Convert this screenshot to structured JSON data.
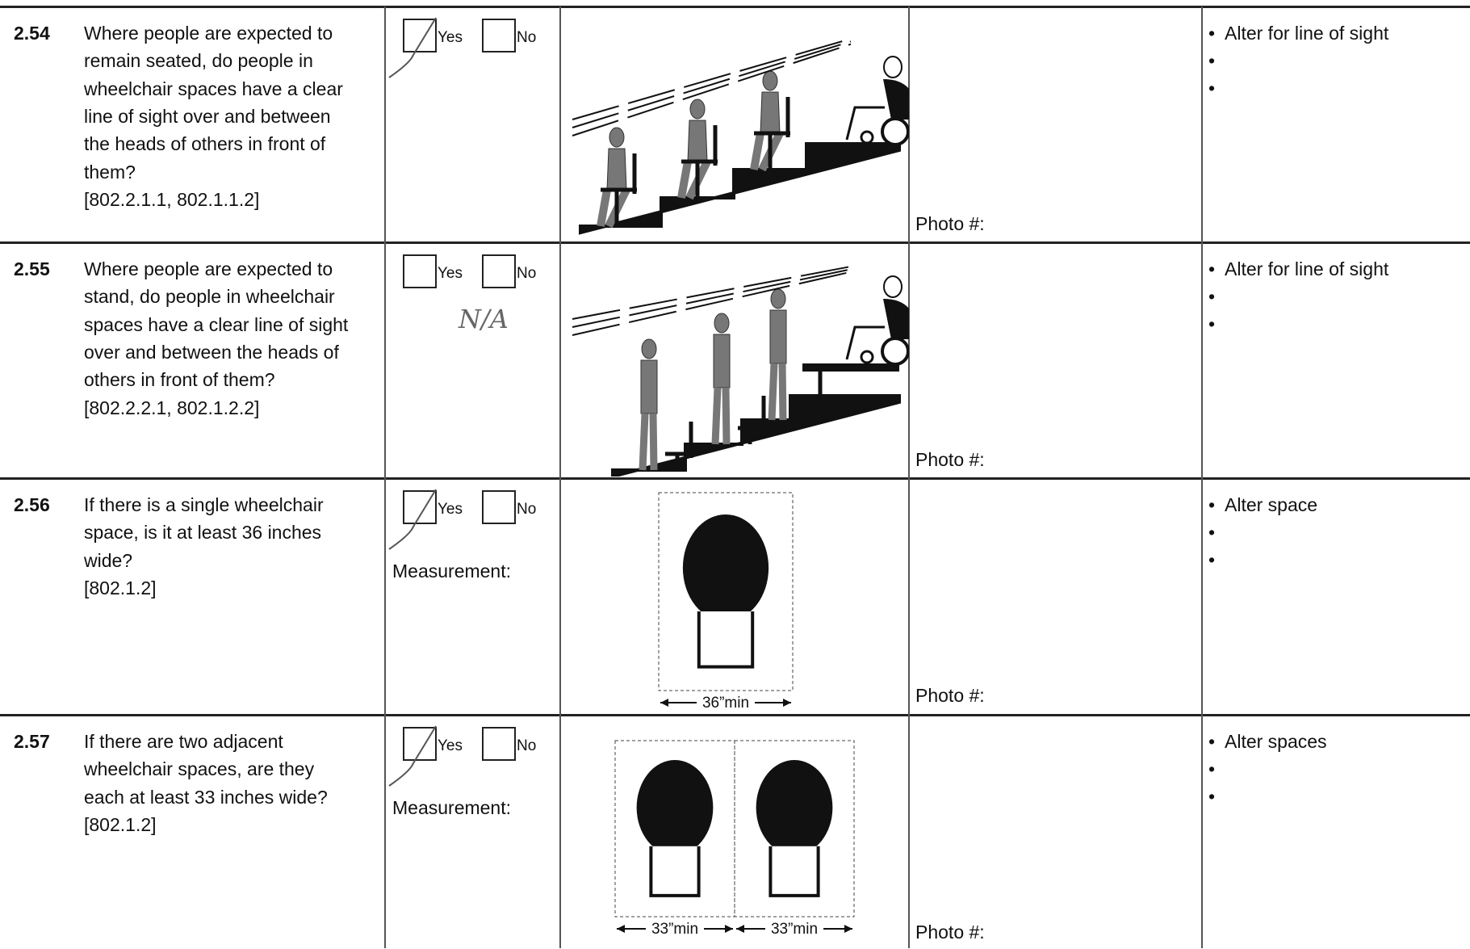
{
  "rows": [
    {
      "number": "2.54",
      "question": [
        "Where people are expected to",
        "remain seated, do people in",
        "wheelchair spaces have a clear",
        "line of sight over and between",
        "the heads of others in front of",
        "them?",
        "[802.2.1.1, 802.1.1.2]"
      ],
      "yes": "Yes",
      "no": "No",
      "yes_checked": true,
      "photo": "Photo #:",
      "actions": [
        "Alter for line of sight"
      ]
    },
    {
      "number": "2.55",
      "question": [
        "Where people are expected to",
        "stand, do people in wheelchair",
        "spaces have a clear line of sight",
        "over and between the heads of",
        "others in front of them?",
        "[802.2.2.1, 802.1.2.2]"
      ],
      "yes": "Yes",
      "no": "No",
      "yes_checked": false,
      "handwritten": "N/A",
      "photo": "Photo #:",
      "actions": [
        "Alter for line of sight"
      ]
    },
    {
      "number": "2.56",
      "question": [
        "If there is a single wheelchair",
        "space, is it at least 36 inches",
        "wide?",
        "[802.1.2]"
      ],
      "yes": "Yes",
      "no": "No",
      "yes_checked": true,
      "measurement": "Measurement:",
      "figure_labels": [
        "36”min"
      ],
      "photo": "Photo #:",
      "actions": [
        "Alter space"
      ]
    },
    {
      "number": "2.57",
      "question": [
        "If there are two adjacent",
        "wheelchair spaces, are they",
        "each at least 33 inches wide?",
        "[802.1.2]"
      ],
      "yes": "Yes",
      "no": "No",
      "yes_checked": true,
      "measurement": "Measurement:",
      "figure_labels": [
        "33”min",
        "33”min"
      ],
      "photo": "Photo #:",
      "actions": [
        "Alter spaces"
      ]
    }
  ]
}
